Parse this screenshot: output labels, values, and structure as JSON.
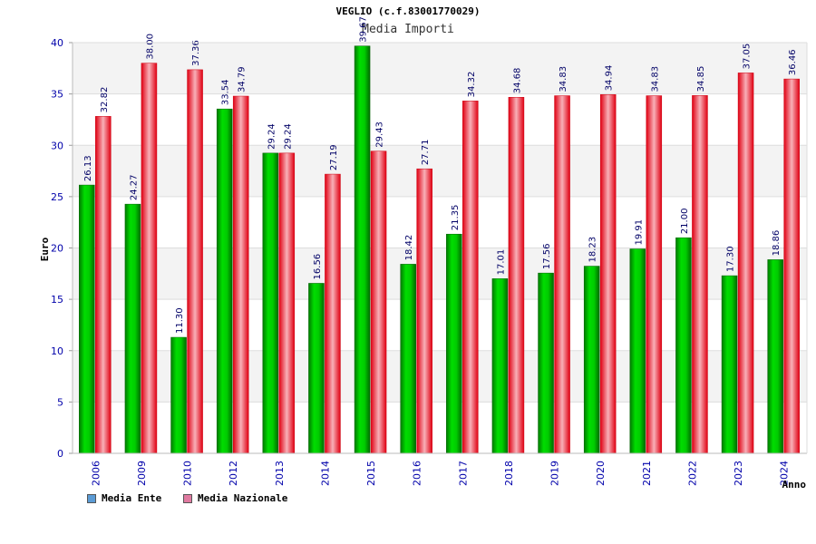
{
  "chart_data": {
    "type": "bar",
    "title": "VEGLIO (c.f.83001770029)",
    "subtitle": "Media Importi",
    "xlabel": "Anno",
    "ylabel": "Euro",
    "ylim": [
      0,
      40
    ],
    "yticks": [
      0,
      5,
      10,
      15,
      20,
      25,
      30,
      35,
      40
    ],
    "ytick_labels": [
      "0",
      "5",
      "10",
      "15",
      "20",
      "25",
      "30",
      "35",
      "40"
    ],
    "categories": [
      "2006",
      "2009",
      "2010",
      "2012",
      "2013",
      "2014",
      "2015",
      "2016",
      "2017",
      "2018",
      "2019",
      "2020",
      "2021",
      "2022",
      "2023",
      "2024"
    ],
    "series": [
      {
        "name": "Media Ente",
        "values": [
          26.13,
          24.27,
          11.3,
          33.54,
          29.24,
          16.56,
          39.67,
          18.42,
          21.35,
          17.01,
          17.56,
          18.23,
          19.91,
          21.0,
          17.3,
          18.86
        ],
        "labels": [
          "26.13",
          "24.27",
          "11.30",
          "33.54",
          "29.24",
          "16.56",
          "39.67",
          "18.42",
          "21.35",
          "17.01",
          "17.56",
          "18.23",
          "19.91",
          "21.00",
          "17.30",
          "18.86"
        ]
      },
      {
        "name": "Media Nazionale",
        "values": [
          32.82,
          38.0,
          37.36,
          34.79,
          29.24,
          27.19,
          29.43,
          27.71,
          34.32,
          34.68,
          34.83,
          34.94,
          34.83,
          34.85,
          37.05,
          36.46
        ],
        "labels": [
          "32.82",
          "38.00",
          "37.36",
          "34.79",
          "29.24",
          "27.19",
          "29.43",
          "27.71",
          "34.32",
          "34.68",
          "34.83",
          "34.94",
          "34.83",
          "34.85",
          "37.05",
          "36.46"
        ]
      }
    ],
    "legend": {
      "position": "bottom-left",
      "items": [
        {
          "label": "Media Ente",
          "color": "#5b9bd5"
        },
        {
          "label": "Media Nazionale",
          "color": "#e07aa0"
        }
      ]
    },
    "colors": {
      "ente_bar": "#00bb00",
      "nazionale_bar": "#ee1122",
      "axis_text": "#0000aa",
      "grid_band": "#f3f3f3"
    },
    "grid": true
  }
}
